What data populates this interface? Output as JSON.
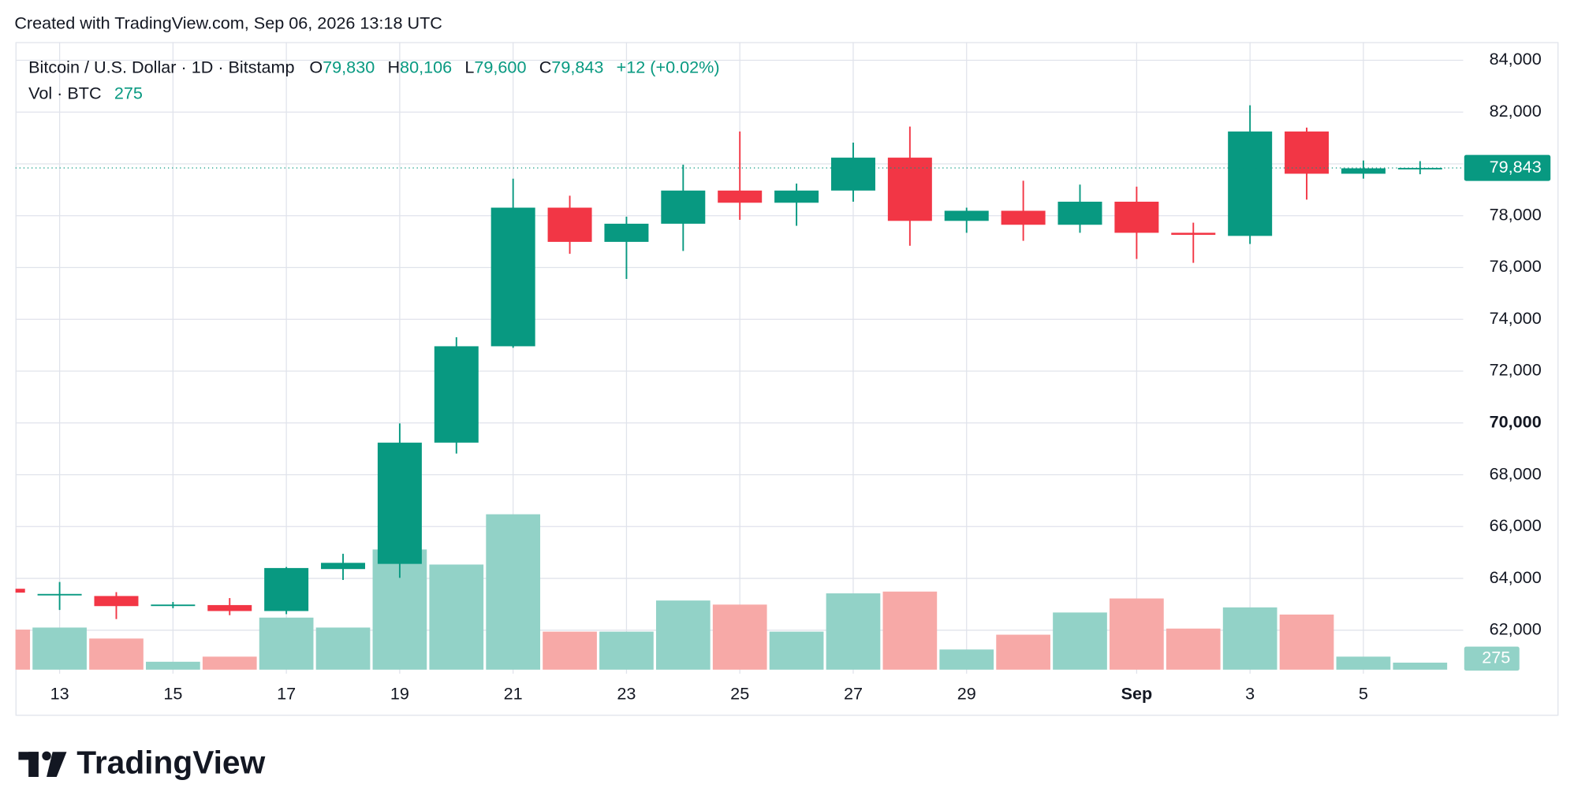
{
  "chart_data": {
    "type": "candlestick",
    "title": "Created with TradingView.com, Sep 06, 2026 13:18 UTC",
    "legend": {
      "symbol": "Bitcoin / U.S. Dollar · 1D · Bitstamp",
      "ohlc": [
        {
          "key": "O",
          "value": "79,830"
        },
        {
          "key": "H",
          "value": "80,106"
        },
        {
          "key": "L",
          "value": "79,600"
        },
        {
          "key": "C",
          "value": "79,843"
        }
      ],
      "change": "+12 (+0.02%)",
      "volume_name": "Vol · BTC",
      "volume": "275"
    },
    "price_label": "79,843",
    "volume_label": "275",
    "branding": "TradingView",
    "categories": [
      null,
      "13",
      null,
      "15",
      null,
      "17",
      null,
      "19",
      null,
      "21",
      null,
      "23",
      null,
      "25",
      null,
      "27",
      null,
      "29",
      null,
      null,
      "Sep",
      null,
      "3",
      null,
      "5",
      null
    ],
    "open": [
      63600,
      63380,
      63320,
      62970,
      62970,
      62740,
      64360,
      64560,
      69240,
      72960,
      78310,
      76990,
      77690,
      78970,
      78500,
      78970,
      80240,
      77800,
      78190,
      77650,
      78540,
      77340,
      77220,
      81250,
      79620,
      79830
    ],
    "high": [
      63600,
      63860,
      63470,
      63090,
      63240,
      64440,
      64950,
      69980,
      73310,
      79430,
      78770,
      77960,
      79970,
      81250,
      79240,
      80820,
      81440,
      78310,
      79350,
      79200,
      79120,
      77730,
      82260,
      81400,
      80130,
      80106
    ],
    "low": [
      63450,
      62780,
      62430,
      62850,
      62580,
      62620,
      63940,
      64020,
      68820,
      72900,
      76530,
      75560,
      76640,
      77840,
      77610,
      78540,
      76840,
      77340,
      77030,
      77340,
      76330,
      76180,
      76910,
      78620,
      79430,
      79600
    ],
    "close": [
      63450,
      63400,
      62930,
      62990,
      62740,
      64400,
      64600,
      69240,
      72960,
      78310,
      76990,
      77690,
      78970,
      78500,
      78970,
      80240,
      77800,
      78190,
      77650,
      78540,
      77340,
      77260,
      81250,
      79620,
      79830,
      79843
    ],
    "volume": [
      1570,
      1650,
      1220,
      310,
      510,
      2040,
      1650,
      4710,
      4120,
      6090,
      1490,
      1490,
      2710,
      2550,
      1490,
      2990,
      3060,
      790,
      1370,
      2240,
      2790,
      1610,
      2440,
      2160,
      510,
      275
    ],
    "up_color": "#089981",
    "down_color": "#f23645",
    "up_volume_color": "#92d2c7",
    "down_volume_color": "#f7a9a7",
    "ylim": [
      60400,
      84700
    ],
    "yticks": [
      {
        "value": 62000,
        "label": "62,000"
      },
      {
        "value": 64000,
        "label": "64,000"
      },
      {
        "value": 66000,
        "label": "66,000"
      },
      {
        "value": 68000,
        "label": "68,000"
      },
      {
        "value": 70000,
        "label": "70,000"
      },
      {
        "value": 72000,
        "label": "72,000"
      },
      {
        "value": 74000,
        "label": "74,000"
      },
      {
        "value": 76000,
        "label": "76,000"
      },
      {
        "value": 78000,
        "label": "78,000"
      },
      {
        "value": 80000,
        "label": "80,000"
      },
      {
        "value": 82000,
        "label": "82,000"
      },
      {
        "value": 84000,
        "label": "84,000"
      }
    ],
    "grid": true
  }
}
